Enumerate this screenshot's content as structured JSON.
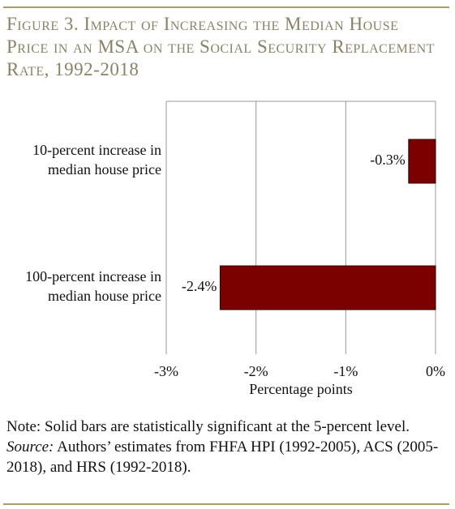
{
  "chart_data": {
    "type": "barh",
    "title": "Figure 3. Impact of Increasing the Median House Price in an MSA on the Social Security Replacement Rate, 1992-2018",
    "categories": [
      [
        "10-percent increase in",
        "median house price"
      ],
      [
        "100-percent increase in",
        "median house price"
      ]
    ],
    "values": [
      -0.3,
      -2.4
    ],
    "value_labels": [
      "-0.3%",
      "-2.4%"
    ],
    "color": "#7b0000",
    "xlim": [
      -3,
      0
    ],
    "xticks": [
      {
        "value": -3,
        "label": "-3%"
      },
      {
        "value": -2,
        "label": "-2%"
      },
      {
        "value": -1,
        "label": "-1%"
      },
      {
        "value": 0,
        "label": "0%"
      }
    ],
    "xlabel": "Percentage points",
    "grid": true,
    "note": "Note: Solid bars are statistically significant at the 5-percent level.",
    "source_label": "Source:",
    "source_text": "Authors’ estimates from FHFA HPI (1992-2005), ACS (2005-2018), and HRS (1992-2018)."
  }
}
